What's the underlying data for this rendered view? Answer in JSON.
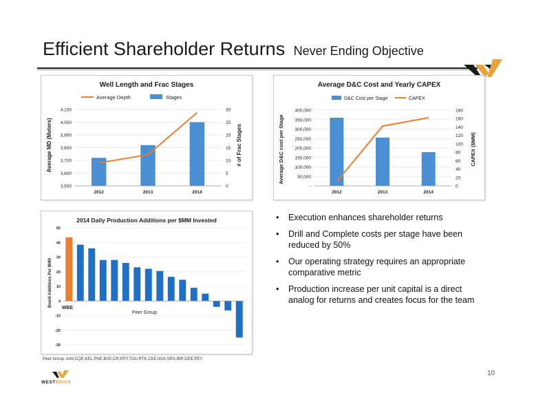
{
  "header": {
    "title": "Efficient Shareholder Returns",
    "subtitle": "Never Ending Objective"
  },
  "bullets": [
    "Execution enhances shareholder returns",
    "Drill and Complete costs per stage have been reduced by 50%",
    "Our operating strategy requires an appropriate comparative metric",
    "Production increase per unit capital is a direct analog for returns and creates focus for the team"
  ],
  "peer_note": "Peer Group: AAV,CQE,KEL,PNE,BXE,CR,PPY,TOU,RTK,CKE,NVA,SRX,BIR,DEE,PEY",
  "page_number": "10",
  "logo": {
    "word_a": "WEST",
    "word_b": "BRICK"
  },
  "colors": {
    "bar": "#4a8fd4",
    "line": "#ed7d31",
    "highlight": "#ed7d31",
    "peer_bar": "#1f6fc5"
  },
  "chart_data": [
    {
      "type": "bar",
      "title": "Well Length and Frac Stages",
      "categories": [
        "2012",
        "2013",
        "2014"
      ],
      "series": [
        {
          "name": "Average Depth",
          "kind": "line",
          "axis": "left",
          "values": [
            3680,
            3745,
            4075
          ]
        },
        {
          "name": "Stages",
          "kind": "bar",
          "axis": "right",
          "values": [
            11,
            16,
            25
          ]
        }
      ],
      "ylabel": "Average MD (Meters)",
      "y2label": "# of Frac Stages",
      "ylim": [
        3500,
        4100
      ],
      "y2lim": [
        0,
        30
      ],
      "yticks": [
        "3,500",
        "3,600",
        "3,700",
        "3,800",
        "3,900",
        "4,000",
        "4,100"
      ],
      "y2ticks": [
        "0",
        "5",
        "10",
        "15",
        "20",
        "25",
        "30"
      ],
      "legend": "top"
    },
    {
      "type": "bar",
      "title": "Average D&C Cost and Yearly CAPEX",
      "categories": [
        "2012",
        "2013",
        "2014"
      ],
      "series": [
        {
          "name": "D&C Cost per Stage",
          "kind": "bar",
          "axis": "left",
          "values": [
            360000,
            255000,
            178000
          ]
        },
        {
          "name": "CAPEX",
          "kind": "line",
          "axis": "right",
          "values": [
            10,
            142,
            162
          ]
        }
      ],
      "ylabel": "Average D&C cost per Stage",
      "y2label": "CAPEX ($MM)",
      "ylim": [
        0,
        400000
      ],
      "y2lim": [
        0,
        180
      ],
      "yticks": [
        "-",
        "50,000",
        "100,000",
        "150,000",
        "200,000",
        "250,000",
        "300,000",
        "350,000",
        "400,000"
      ],
      "y2ticks": [
        "0",
        "20",
        "40",
        "60",
        "80",
        "100",
        "120",
        "140",
        "160",
        "180"
      ],
      "legend": "top"
    },
    {
      "type": "bar",
      "title": "2014 Daily Production Additions per $MM Invested",
      "values": [
        43.5,
        38.5,
        36,
        28,
        28,
        26,
        23,
        22,
        20.5,
        16.5,
        14.5,
        9,
        5,
        -4,
        -6.5,
        -25
      ],
      "highlight_index": 0,
      "labels": {
        "first": "WBE",
        "group": "Peer Group"
      },
      "ylabel": "Boe/d Additions Per $MM",
      "ylim": [
        -30,
        50
      ],
      "yticks": [
        "-30",
        "-20",
        "-10",
        "0",
        "10",
        "20",
        "30",
        "40",
        "50"
      ]
    }
  ]
}
